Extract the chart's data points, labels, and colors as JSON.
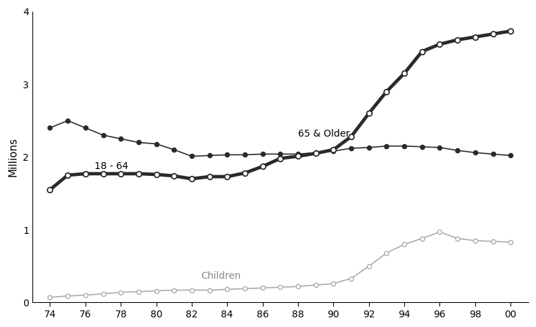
{
  "years": [
    74,
    75,
    76,
    77,
    78,
    79,
    80,
    81,
    82,
    83,
    84,
    85,
    86,
    87,
    88,
    89,
    90,
    91,
    92,
    93,
    94,
    95,
    96,
    97,
    98,
    99,
    100
  ],
  "age_65_older": [
    2.4,
    2.5,
    2.4,
    2.3,
    2.25,
    2.2,
    2.18,
    2.1,
    2.01,
    2.02,
    2.03,
    2.03,
    2.04,
    2.04,
    2.04,
    2.06,
    2.08,
    2.12,
    2.13,
    2.15,
    2.15,
    2.14,
    2.13,
    2.09,
    2.06,
    2.04,
    2.02
  ],
  "age_18_64": [
    1.55,
    1.75,
    1.77,
    1.77,
    1.77,
    1.77,
    1.76,
    1.74,
    1.7,
    1.73,
    1.73,
    1.78,
    1.87,
    1.98,
    2.01,
    2.05,
    2.1,
    2.28,
    2.6,
    2.9,
    3.15,
    3.45,
    3.55,
    3.61,
    3.65,
    3.69,
    3.73
  ],
  "children": [
    0.07,
    0.09,
    0.1,
    0.12,
    0.14,
    0.15,
    0.16,
    0.17,
    0.17,
    0.17,
    0.18,
    0.19,
    0.2,
    0.21,
    0.22,
    0.24,
    0.26,
    0.33,
    0.5,
    0.68,
    0.8,
    0.88,
    0.97,
    0.88,
    0.85,
    0.84,
    0.83
  ],
  "ylabel": "Millions",
  "ylim": [
    0,
    4
  ],
  "yticks": [
    0,
    1,
    2,
    3,
    4
  ],
  "xtick_labels": [
    "74",
    "76",
    "78",
    "80",
    "82",
    "84",
    "86",
    "88",
    "90",
    "92",
    "94",
    "96",
    "98",
    "00"
  ],
  "xtick_positions": [
    74,
    76,
    78,
    80,
    82,
    84,
    86,
    88,
    90,
    92,
    94,
    96,
    98,
    100
  ],
  "label_65_older": "65 & Older",
  "label_18_64": "18 - 64",
  "label_children": "Children",
  "line_color_65_older": "#2a2a2a",
  "line_color_18_64": "#2a2a2a",
  "line_color_children": "#aaaaaa",
  "bg_color": "#ffffff",
  "ann_65_x": 88.0,
  "ann_65_y": 2.28,
  "ann_18_x": 76.5,
  "ann_18_y": 1.83,
  "ann_children_x": 82.5,
  "ann_children_y": 0.33
}
